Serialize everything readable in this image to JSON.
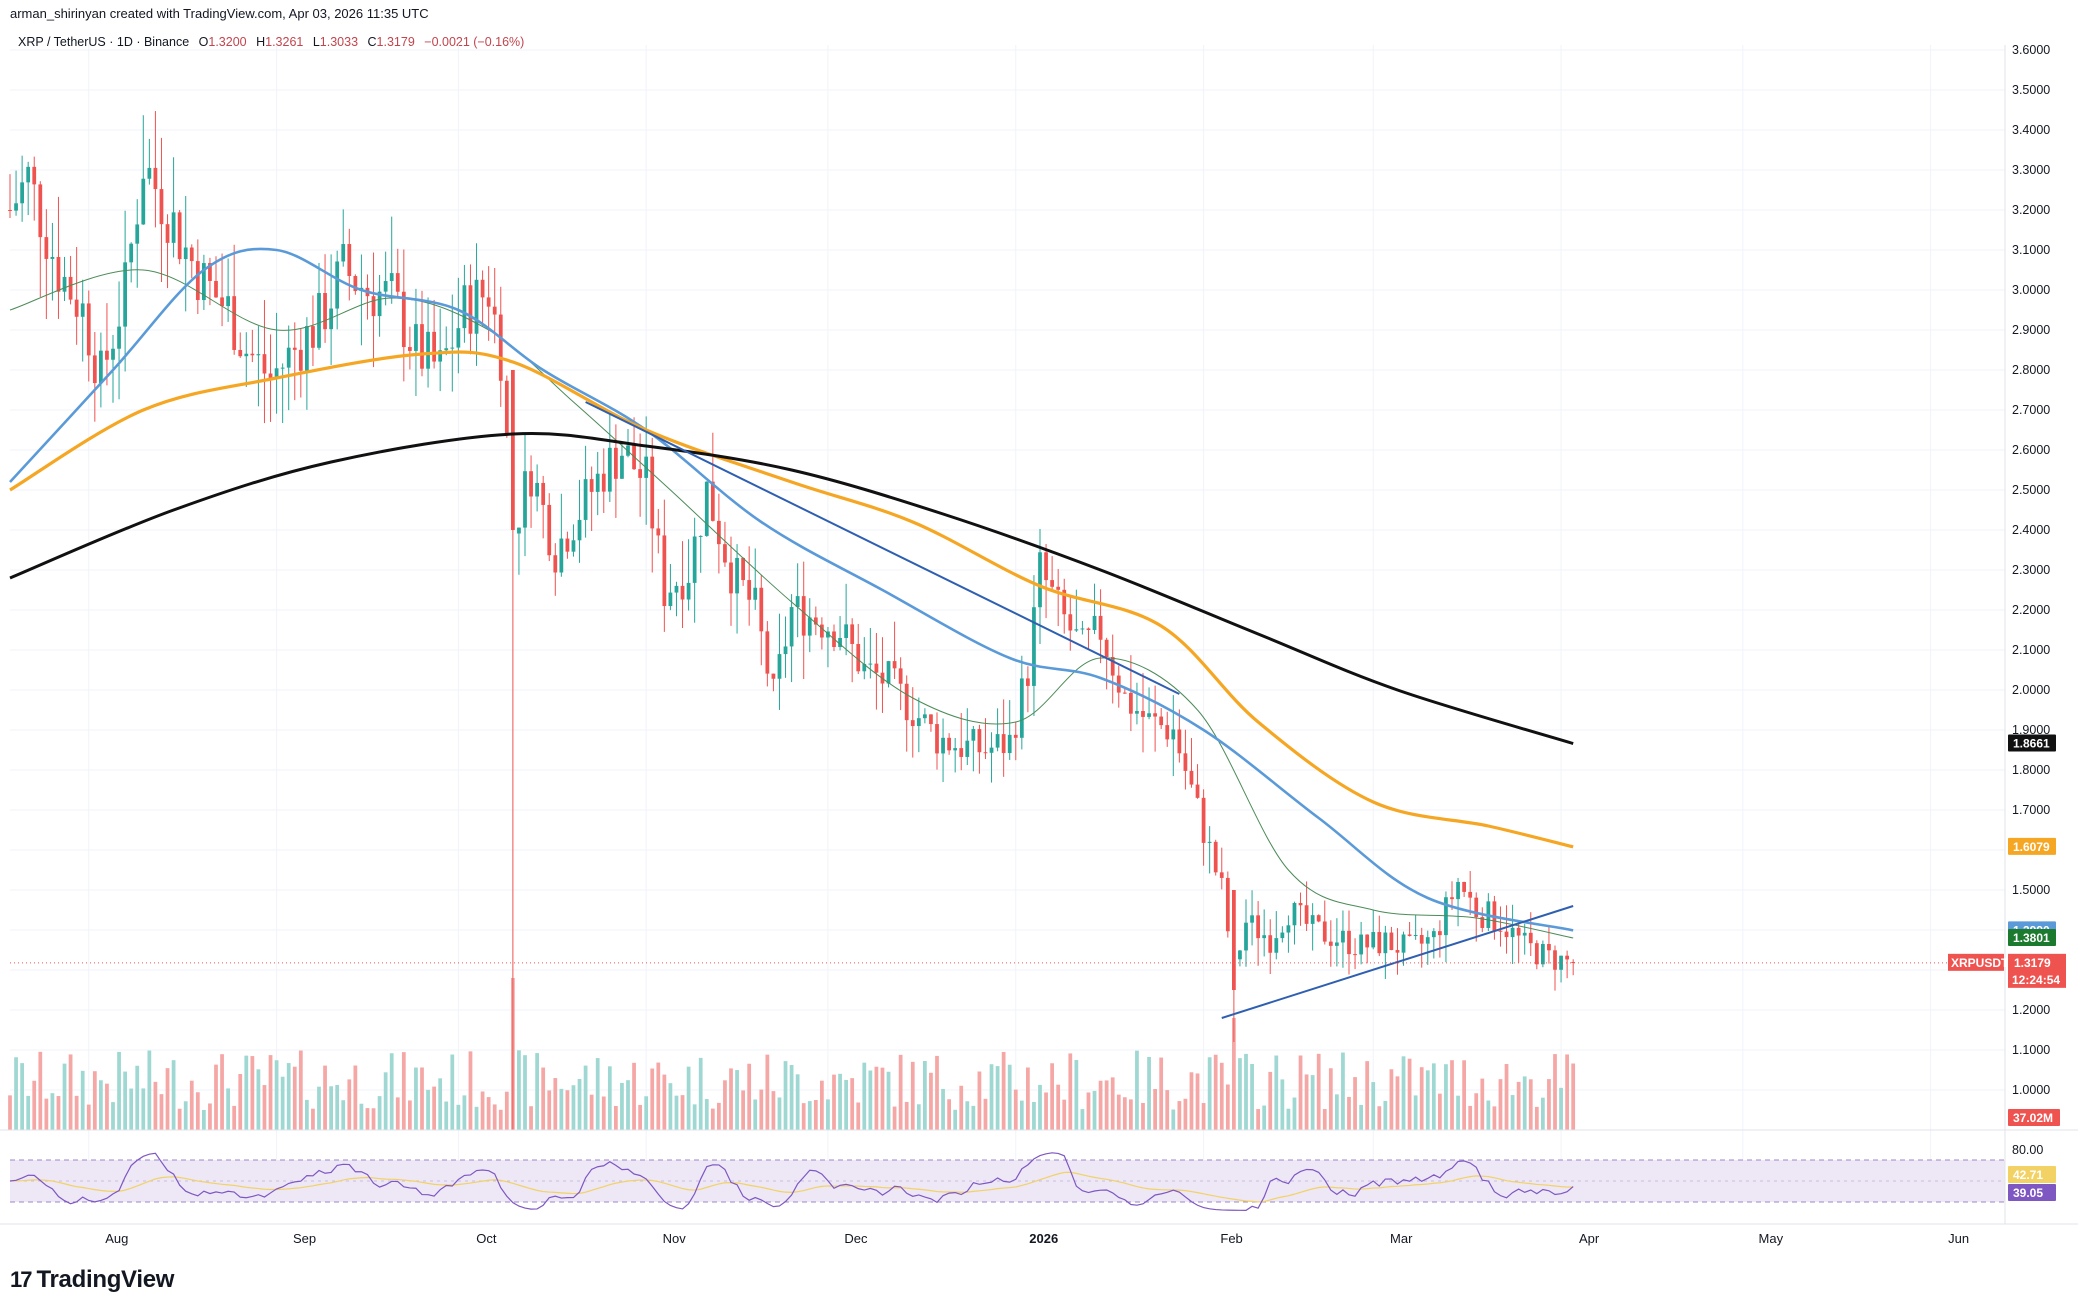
{
  "header": {
    "credit": "arman_shirinyan created with TradingView.com, Apr 03, 2026 11:35 UTC"
  },
  "legend": {
    "symbol": "XRP / TetherUS · 1D · Binance",
    "open_label": "O",
    "open": "1.3200",
    "high_label": "H",
    "high": "1.3261",
    "low_label": "L",
    "low": "1.3033",
    "close_label": "C",
    "close": "1.3179",
    "change": "−0.0021 (−0.16%)"
  },
  "footer": {
    "logo_text": "TradingView",
    "logo_mark": "17"
  },
  "colors": {
    "up": "#26a69a",
    "down": "#ef5350",
    "up_vol": "#9fd8d2",
    "down_vol": "#f5a7a6",
    "ma_short": "#4c8b58",
    "ma_mid": "#5b9ad8",
    "ma_long": "#f5a623",
    "ma_200": "#111111",
    "trendline": "#2f5fb0",
    "rsi": "#7e57c2",
    "rsi_ma": "#f2d264",
    "rsi_band": "#ede7f6"
  },
  "price_tags": [
    {
      "name": "ma-200-tag",
      "value": "1.8661",
      "price": 1.8661,
      "color": "#111111"
    },
    {
      "name": "ma-100-tag",
      "value": "1.6079",
      "price": 1.6079,
      "color": "#f5a623"
    },
    {
      "name": "ma-50-tag",
      "value": "1.3990",
      "price": 1.399,
      "color": "#5b9ad8"
    },
    {
      "name": "ma-20-tag",
      "value": "1.3801",
      "price": 1.3801,
      "color": "#1b7a2e"
    }
  ],
  "last_price": {
    "symbol": "XRPUSDT",
    "value": "1.3179",
    "countdown": "12:24:54",
    "price": 1.3179,
    "color": "#ef5350"
  },
  "volume_tag": {
    "value": "37.02M",
    "color": "#ef5350"
  },
  "rsi": {
    "upper": "80.00",
    "value": "42.71",
    "ma_value": "39.05",
    "value_color": "#f2d264",
    "ma_color": "#7e57c2"
  },
  "chart_data": {
    "type": "candlestick",
    "symbol": "XRP / TetherUS",
    "interval": "1D",
    "exchange": "Binance",
    "y_axis": {
      "ticks": [
        "3.6000",
        "3.5000",
        "3.4000",
        "3.3000",
        "3.2000",
        "3.1000",
        "3.0000",
        "2.9000",
        "2.8000",
        "2.7000",
        "2.6000",
        "2.5000",
        "2.4000",
        "2.3000",
        "2.2000",
        "2.1000",
        "2.0000",
        "1.9000",
        "1.8000",
        "1.7000",
        "1.6000",
        "1.5000",
        "1.4000",
        "1.3000",
        "1.2000",
        "1.1000",
        "1.0000"
      ],
      "range": [
        0.9,
        3.65
      ]
    },
    "x_axis": {
      "ticks": [
        "Aug",
        "Sep",
        "Oct",
        "Nov",
        "Dec",
        "2026",
        "Feb",
        "Mar",
        "Apr",
        "May",
        "Jun"
      ]
    },
    "price_path": [
      {
        "t": "2025-07-19",
        "p": 3.2
      },
      {
        "t": "2025-07-22",
        "p": 3.28
      },
      {
        "t": "2025-07-27",
        "p": 3.05
      },
      {
        "t": "2025-07-31",
        "p": 2.95
      },
      {
        "t": "2025-08-03",
        "p": 2.78
      },
      {
        "t": "2025-08-07",
        "p": 3.0
      },
      {
        "t": "2025-08-10",
        "p": 3.32
      },
      {
        "t": "2025-08-14",
        "p": 3.2
      },
      {
        "t": "2025-08-17",
        "p": 3.1
      },
      {
        "t": "2025-08-20",
        "p": 3.02
      },
      {
        "t": "2025-08-24",
        "p": 2.95
      },
      {
        "t": "2025-08-27",
        "p": 2.85
      },
      {
        "t": "2025-08-31",
        "p": 2.78
      },
      {
        "t": "2025-09-04",
        "p": 2.85
      },
      {
        "t": "2025-09-08",
        "p": 2.92
      },
      {
        "t": "2025-09-12",
        "p": 3.05
      },
      {
        "t": "2025-09-16",
        "p": 3.0
      },
      {
        "t": "2025-09-20",
        "p": 2.98
      },
      {
        "t": "2025-09-24",
        "p": 2.85
      },
      {
        "t": "2025-09-28",
        "p": 2.8
      },
      {
        "t": "2025-10-02",
        "p": 2.95
      },
      {
        "t": "2025-10-06",
        "p": 3.0
      },
      {
        "t": "2025-10-08",
        "p": 2.85
      },
      {
        "t": "2025-10-10",
        "p": 2.4
      },
      {
        "t": "2025-10-13",
        "p": 2.55
      },
      {
        "t": "2025-10-17",
        "p": 2.35
      },
      {
        "t": "2025-10-21",
        "p": 2.45
      },
      {
        "t": "2025-10-25",
        "p": 2.55
      },
      {
        "t": "2025-10-28",
        "p": 2.6
      },
      {
        "t": "2025-11-01",
        "p": 2.52
      },
      {
        "t": "2025-11-04",
        "p": 2.25
      },
      {
        "t": "2025-11-08",
        "p": 2.3
      },
      {
        "t": "2025-11-11",
        "p": 2.5
      },
      {
        "t": "2025-11-15",
        "p": 2.3
      },
      {
        "t": "2025-11-19",
        "p": 2.2
      },
      {
        "t": "2025-11-22",
        "p": 1.98
      },
      {
        "t": "2025-11-25",
        "p": 2.2
      },
      {
        "t": "2025-11-29",
        "p": 2.18
      },
      {
        "t": "2025-12-03",
        "p": 2.15
      },
      {
        "t": "2025-12-07",
        "p": 2.05
      },
      {
        "t": "2025-12-11",
        "p": 2.02
      },
      {
        "t": "2025-12-15",
        "p": 1.95
      },
      {
        "t": "2025-12-19",
        "p": 1.88
      },
      {
        "t": "2025-12-23",
        "p": 1.86
      },
      {
        "t": "2025-12-27",
        "p": 1.85
      },
      {
        "t": "2025-12-31",
        "p": 1.87
      },
      {
        "t": "2026-01-03",
        "p": 2.05
      },
      {
        "t": "2026-01-05",
        "p": 2.3
      },
      {
        "t": "2026-01-08",
        "p": 2.2
      },
      {
        "t": "2026-01-12",
        "p": 2.1
      },
      {
        "t": "2026-01-15",
        "p": 2.15
      },
      {
        "t": "2026-01-19",
        "p": 1.98
      },
      {
        "t": "2026-01-23",
        "p": 1.92
      },
      {
        "t": "2026-01-27",
        "p": 1.9
      },
      {
        "t": "2026-01-30",
        "p": 1.75
      },
      {
        "t": "2026-02-02",
        "p": 1.6
      },
      {
        "t": "2026-02-04",
        "p": 1.5
      },
      {
        "t": "2026-02-06",
        "p": 1.3
      },
      {
        "t": "2026-02-08",
        "p": 1.42
      },
      {
        "t": "2026-02-12",
        "p": 1.38
      },
      {
        "t": "2026-02-15",
        "p": 1.45
      },
      {
        "t": "2026-02-19",
        "p": 1.4
      },
      {
        "t": "2026-02-23",
        "p": 1.38
      },
      {
        "t": "2026-02-27",
        "p": 1.36
      },
      {
        "t": "2026-03-03",
        "p": 1.37
      },
      {
        "t": "2026-03-07",
        "p": 1.35
      },
      {
        "t": "2026-03-11",
        "p": 1.38
      },
      {
        "t": "2026-03-15",
        "p": 1.52
      },
      {
        "t": "2026-03-18",
        "p": 1.45
      },
      {
        "t": "2026-03-22",
        "p": 1.42
      },
      {
        "t": "2026-03-26",
        "p": 1.36
      },
      {
        "t": "2026-03-30",
        "p": 1.33
      },
      {
        "t": "2026-04-03",
        "p": 1.3179
      }
    ],
    "moving_averages": [
      {
        "name": "ma-20",
        "color": "#4c8b58",
        "points": [
          [
            "2025-07-19",
            2.95
          ],
          [
            "2025-08-10",
            3.05
          ],
          [
            "2025-09-01",
            2.9
          ],
          [
            "2025-09-20",
            2.98
          ],
          [
            "2025-10-06",
            2.9
          ],
          [
            "2025-10-20",
            2.72
          ],
          [
            "2025-11-05",
            2.5
          ],
          [
            "2025-11-25",
            2.22
          ],
          [
            "2025-12-15",
            1.98
          ],
          [
            "2026-01-01",
            1.92
          ],
          [
            "2026-01-15",
            2.08
          ],
          [
            "2026-01-31",
            1.95
          ],
          [
            "2026-02-15",
            1.55
          ],
          [
            "2026-03-01",
            1.45
          ],
          [
            "2026-03-18",
            1.43
          ],
          [
            "2026-04-03",
            1.38
          ]
        ]
      },
      {
        "name": "ma-50",
        "color": "#5b9ad8",
        "points": [
          [
            "2025-07-19",
            2.52
          ],
          [
            "2025-08-05",
            2.8
          ],
          [
            "2025-08-20",
            3.05
          ],
          [
            "2025-09-01",
            3.1
          ],
          [
            "2025-09-15",
            3.0
          ],
          [
            "2025-10-01",
            2.95
          ],
          [
            "2025-10-15",
            2.8
          ],
          [
            "2025-11-01",
            2.65
          ],
          [
            "2025-11-20",
            2.42
          ],
          [
            "2025-12-10",
            2.25
          ],
          [
            "2025-12-31",
            2.08
          ],
          [
            "2026-01-15",
            2.03
          ],
          [
            "2026-02-01",
            1.9
          ],
          [
            "2026-02-20",
            1.68
          ],
          [
            "2026-03-10",
            1.48
          ],
          [
            "2026-04-03",
            1.399
          ]
        ]
      },
      {
        "name": "ma-100",
        "color": "#f5a623",
        "points": [
          [
            "2025-07-19",
            2.5
          ],
          [
            "2025-08-10",
            2.7
          ],
          [
            "2025-09-01",
            2.78
          ],
          [
            "2025-09-25",
            2.84
          ],
          [
            "2025-10-10",
            2.82
          ],
          [
            "2025-11-01",
            2.65
          ],
          [
            "2025-11-25",
            2.52
          ],
          [
            "2025-12-15",
            2.42
          ],
          [
            "2026-01-05",
            2.26
          ],
          [
            "2026-01-25",
            2.16
          ],
          [
            "2026-02-10",
            1.92
          ],
          [
            "2026-03-01",
            1.72
          ],
          [
            "2026-03-20",
            1.66
          ],
          [
            "2026-04-03",
            1.6079
          ]
        ]
      },
      {
        "name": "ma-200",
        "color": "#111111",
        "points": [
          [
            "2025-07-19",
            2.28
          ],
          [
            "2025-08-15",
            2.45
          ],
          [
            "2025-09-10",
            2.57
          ],
          [
            "2025-10-10",
            2.64
          ],
          [
            "2025-11-01",
            2.61
          ],
          [
            "2025-11-25",
            2.55
          ],
          [
            "2025-12-20",
            2.44
          ],
          [
            "2026-01-15",
            2.3
          ],
          [
            "2026-02-10",
            2.14
          ],
          [
            "2026-03-05",
            2.0
          ],
          [
            "2026-04-03",
            1.8661
          ]
        ]
      }
    ],
    "trendlines": [
      {
        "name": "descending-trendline",
        "from": [
          "2025-10-22",
          2.72
        ],
        "to": [
          "2026-01-28",
          1.99
        ]
      },
      {
        "name": "ascending-trendline",
        "from": [
          "2026-02-04",
          1.18
        ],
        "to": [
          "2026-04-03",
          1.46
        ]
      }
    ],
    "last_price": 1.3179,
    "volume_last": "37.02M",
    "rsi": {
      "upper": 80,
      "value": 42.71,
      "ma": 39.05
    }
  }
}
